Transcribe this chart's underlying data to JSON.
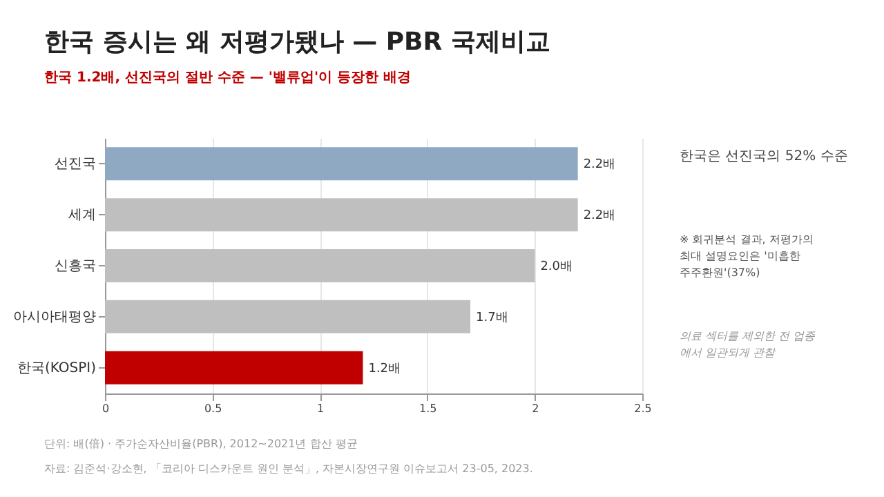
{
  "chart_data": {
    "type": "bar",
    "orientation": "horizontal",
    "title": "한국 증시는 왜 저평가됐나 — PBR 국제비교",
    "subtitle": "한국 1.2배, 선진국의 절반 수준 — '밸류업'이 등장한 배경",
    "categories": [
      "선진국",
      "세계",
      "신흥국",
      "아시아태평양",
      "한국(KOSPI)"
    ],
    "values": [
      2.2,
      2.2,
      2.0,
      1.7,
      1.2
    ],
    "colors": [
      "#8fa9c2",
      "#bfbfbf",
      "#bfbfbf",
      "#bfbfbf",
      "#c00000"
    ],
    "value_labels": [
      "2.2배",
      "2.2배",
      "2.0배",
      "1.7배",
      "1.2배"
    ],
    "xlim": [
      0,
      2.5
    ],
    "xticks": [
      0,
      0.5,
      1,
      1.5,
      2,
      2.5
    ],
    "grid": "x",
    "annotations": [
      "한국은 선진국의 52% 수준",
      "※ 회귀분석 결과, 저평가의\n최대 설명요인은 '미흡한\n주주환원'(37%)",
      "의료 섹터를 제외한 전 업종\n에서 일관되게 관찰",
      "단위: 배(倍) · 주가순자산비율(PBR), 2012~2021년 합산 평균",
      "자료: 김준석·강소현, 「코리아 디스카운트 원인 분석」, 자본시장연구원 이슈보고서 23-05, 2023."
    ]
  }
}
